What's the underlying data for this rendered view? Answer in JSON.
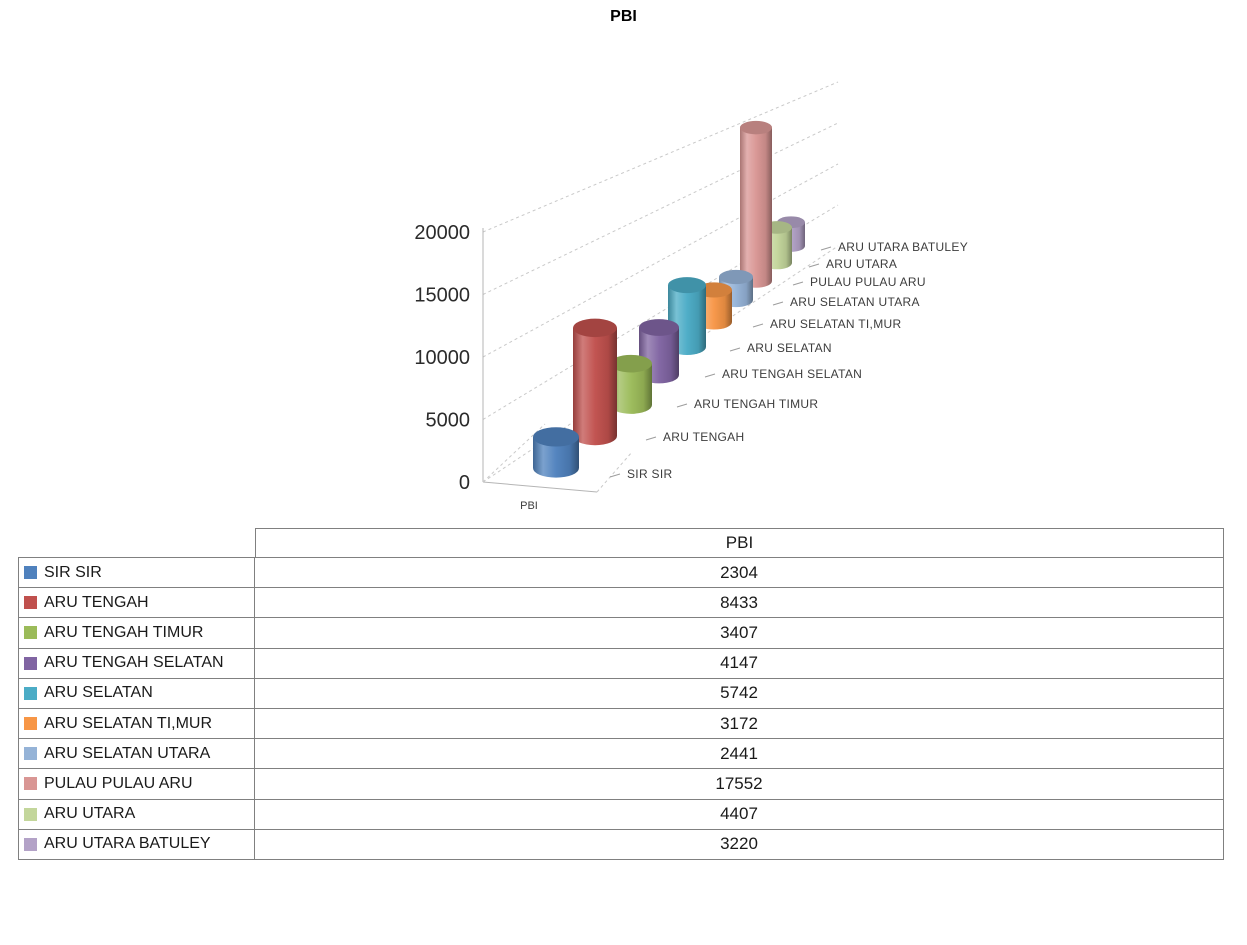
{
  "title": "PBI",
  "chart_data": {
    "type": "bar",
    "subtype": "cylinder-3d",
    "title": "PBI",
    "categories": [
      "SIR SIR",
      "ARU TENGAH",
      "ARU TENGAH TIMUR",
      "ARU TENGAH SELATAN",
      "ARU SELATAN",
      "ARU SELATAN TI,MUR",
      "ARU SELATAN UTARA",
      "PULAU PULAU ARU",
      "ARU UTARA",
      "ARU UTARA BATULEY"
    ],
    "series": [
      {
        "name": "PBI",
        "values": [
          2304,
          8433,
          3407,
          4147,
          5742,
          3172,
          2441,
          17552,
          4407,
          3220
        ]
      }
    ],
    "colors": [
      "#4F81BD",
      "#C0504D",
      "#9BBB59",
      "#8064A2",
      "#4BACC6",
      "#F79646",
      "#95B3D7",
      "#D99694",
      "#C3D69B",
      "#B3A2C7"
    ],
    "value_axis": {
      "min": 0,
      "max": 20000,
      "tick_interval": 5000,
      "ticks": [
        0,
        5000,
        10000,
        15000,
        20000
      ]
    },
    "series_axis_label": "PBI",
    "grid": "dashed",
    "legend_position": "none"
  },
  "table": {
    "header": "PBI"
  }
}
